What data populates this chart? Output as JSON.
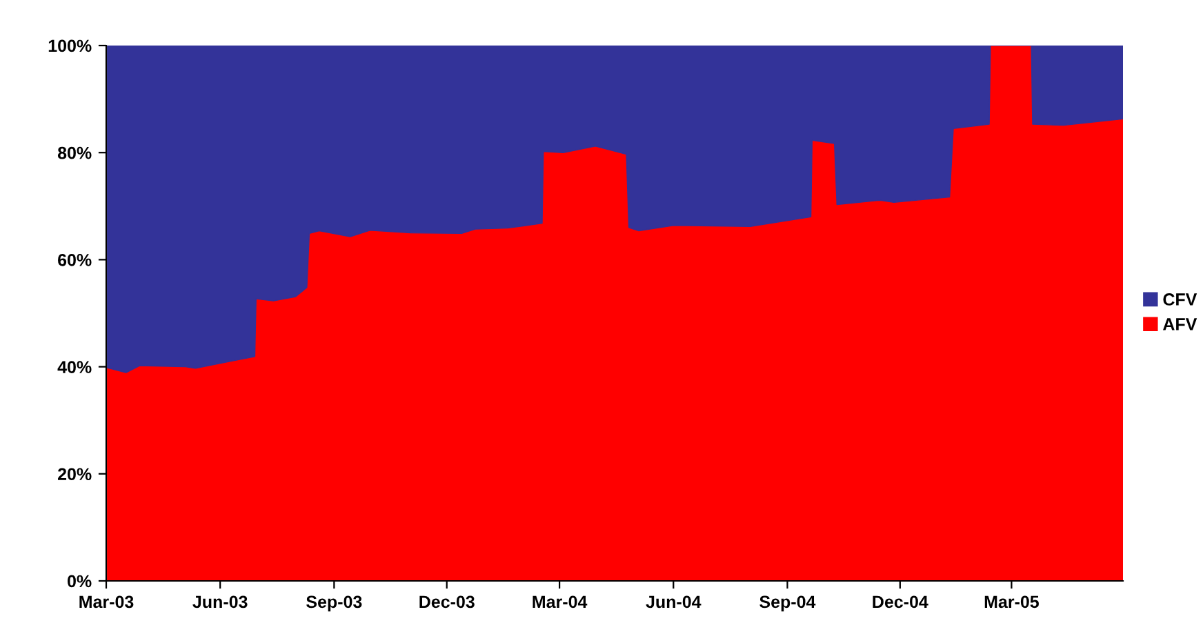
{
  "chart_data": {
    "type": "area",
    "stacked": true,
    "x": [
      "2003-03-02",
      "2003-03-17",
      "2003-03-28",
      "2003-05-04",
      "2003-05-12",
      "2003-06-11",
      "2003-06-29",
      "2003-06-30",
      "2003-07-14",
      "2003-08-01",
      "2003-08-10",
      "2003-08-12",
      "2003-08-20",
      "2003-09-14",
      "2003-09-30",
      "2003-11-02",
      "2003-12-13",
      "2003-12-24",
      "2004-01-19",
      "2004-02-16",
      "2004-02-17",
      "2004-03-04",
      "2004-03-30",
      "2004-04-24",
      "2004-04-26",
      "2004-05-04",
      "2004-06-01",
      "2004-08-02",
      "2004-09-20",
      "2004-09-21",
      "2004-10-09",
      "2004-10-11",
      "2004-11-15",
      "2004-11-26",
      "2005-01-10",
      "2005-01-13",
      "2005-02-11",
      "2005-02-12",
      "2005-03-17",
      "2005-03-18",
      "2005-04-12",
      "2005-05-30"
    ],
    "series": [
      {
        "name": "AFV",
        "color": "#ff0000",
        "values": [
          39.8,
          38.9,
          40.2,
          40.0,
          39.7,
          41.1,
          41.9,
          52.7,
          52.3,
          53.1,
          54.8,
          64.9,
          65.4,
          64.3,
          65.5,
          65.0,
          64.9,
          65.7,
          65.9,
          66.8,
          80.2,
          80.0,
          81.2,
          79.7,
          66.0,
          65.4,
          66.4,
          66.2,
          68.0,
          82.3,
          81.7,
          70.3,
          71.1,
          70.7,
          71.7,
          84.5,
          85.3,
          100,
          100,
          85.3,
          85.1,
          86.3
        ]
      },
      {
        "name": "CFV",
        "color": "#333399",
        "values": [
          60.2,
          61.1,
          59.8,
          60.0,
          60.3,
          58.9,
          58.1,
          47.3,
          47.7,
          46.9,
          45.2,
          35.1,
          34.6,
          35.7,
          34.5,
          35.0,
          35.1,
          34.3,
          34.1,
          33.2,
          19.8,
          20.0,
          18.8,
          20.3,
          34.0,
          34.6,
          33.6,
          33.8,
          32.0,
          17.7,
          18.3,
          29.7,
          28.9,
          29.3,
          28.3,
          15.5,
          14.7,
          0,
          0,
          14.7,
          14.9,
          13.7
        ]
      }
    ],
    "xlim": [
      "2003-03-01",
      "2005-05-30"
    ],
    "xticks": [
      {
        "value": "2003-03-01",
        "label": "Mar-03"
      },
      {
        "value": "2003-06-01",
        "label": "Jun-03"
      },
      {
        "value": "2003-09-01",
        "label": "Sep-03"
      },
      {
        "value": "2003-12-01",
        "label": "Dec-03"
      },
      {
        "value": "2004-03-01",
        "label": "Mar-04"
      },
      {
        "value": "2004-06-01",
        "label": "Jun-04"
      },
      {
        "value": "2004-09-01",
        "label": "Sep-04"
      },
      {
        "value": "2004-12-01",
        "label": "Dec-04"
      },
      {
        "value": "2005-03-01",
        "label": "Mar-05"
      }
    ],
    "ylim": [
      0,
      100
    ],
    "yticks": [
      {
        "value": 0,
        "label": "0%"
      },
      {
        "value": 20,
        "label": "20%"
      },
      {
        "value": 40,
        "label": "40%"
      },
      {
        "value": 60,
        "label": "60%"
      },
      {
        "value": 80,
        "label": "80%"
      },
      {
        "value": 100,
        "label": "100%"
      }
    ],
    "legend": "right",
    "grid": false
  }
}
